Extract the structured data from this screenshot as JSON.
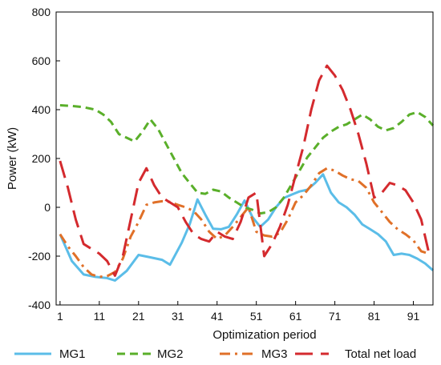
{
  "chart_data": {
    "type": "line",
    "title": "",
    "xlabel": "Optimization period",
    "ylabel": "Power (kW)",
    "xlim": [
      0,
      96
    ],
    "ylim": [
      -400,
      800
    ],
    "xticks": [
      1,
      11,
      21,
      31,
      41,
      51,
      61,
      71,
      81,
      91
    ],
    "yticks": [
      -400,
      -200,
      0,
      200,
      400,
      600,
      800
    ],
    "grid": false,
    "legend_position": "bottom",
    "series": [
      {
        "name": "MG1",
        "color": "#5bbde8",
        "style": "solid",
        "x": [
          1,
          4,
          7,
          10,
          13,
          15,
          18,
          21,
          24,
          27,
          29,
          32,
          34,
          36,
          38,
          40,
          42,
          44,
          46,
          48,
          50,
          52,
          54,
          56,
          58,
          60,
          62,
          64,
          66,
          68,
          70,
          72,
          74,
          76,
          78,
          80,
          82,
          84,
          86,
          88,
          90,
          92,
          94,
          96
        ],
        "values": [
          -110,
          -220,
          -275,
          -285,
          -290,
          -300,
          -260,
          -195,
          -205,
          -215,
          -235,
          -145,
          -70,
          32,
          -30,
          -88,
          -90,
          -80,
          -30,
          28,
          -40,
          -80,
          -50,
          0,
          38,
          52,
          65,
          72,
          100,
          135,
          60,
          20,
          0,
          -30,
          -70,
          -90,
          -110,
          -140,
          -195,
          -190,
          -195,
          -210,
          -230,
          -258
        ]
      },
      {
        "name": "MG2",
        "color": "#5aaf2a",
        "style": "short-dash",
        "x": [
          1,
          4,
          7,
          10,
          12,
          14,
          16,
          18,
          20,
          22,
          24,
          26,
          28,
          30,
          32,
          34,
          36,
          38,
          40,
          42,
          44,
          46,
          48,
          50,
          52,
          54,
          56,
          58,
          60,
          62,
          64,
          66,
          68,
          70,
          72,
          74,
          76,
          78,
          80,
          82,
          84,
          86,
          88,
          90,
          92,
          94,
          96
        ],
        "values": [
          418,
          415,
          410,
          400,
          380,
          350,
          300,
          285,
          270,
          310,
          360,
          320,
          260,
          200,
          140,
          100,
          60,
          55,
          72,
          65,
          40,
          20,
          0,
          -10,
          -25,
          -20,
          0,
          40,
          95,
          150,
          205,
          245,
          285,
          310,
          330,
          340,
          360,
          380,
          360,
          330,
          315,
          325,
          350,
          380,
          390,
          370,
          335
        ]
      },
      {
        "name": "MG3",
        "color": "#e07028",
        "style": "dash-dot",
        "x": [
          1,
          3,
          5,
          7,
          9,
          11,
          13,
          15,
          17,
          19,
          21,
          23,
          25,
          27,
          29,
          31,
          33,
          35,
          37,
          39,
          41,
          43,
          45,
          47,
          49,
          51,
          53,
          55,
          57,
          59,
          61,
          63,
          65,
          67,
          69,
          71,
          73,
          75,
          77,
          79,
          81,
          83,
          85,
          87,
          89,
          91,
          93,
          95
        ],
        "values": [
          -110,
          -160,
          -200,
          -245,
          -275,
          -285,
          -282,
          -265,
          -210,
          -120,
          -60,
          10,
          20,
          25,
          22,
          10,
          0,
          -15,
          -50,
          -100,
          -130,
          -115,
          -80,
          -40,
          0,
          -100,
          -115,
          -120,
          -105,
          -50,
          20,
          50,
          90,
          140,
          160,
          150,
          130,
          115,
          108,
          80,
          20,
          -20,
          -60,
          -90,
          -110,
          -135,
          -180,
          -190
        ]
      },
      {
        "name": "Total net load",
        "color": "#d42a2e",
        "style": "long-dash",
        "x": [
          1,
          3,
          5,
          7,
          9,
          11,
          13,
          15,
          17,
          19,
          21,
          23,
          25,
          27,
          29,
          31,
          33,
          35,
          37,
          39,
          41,
          43,
          45,
          47,
          49,
          51,
          53,
          55,
          57,
          59,
          61,
          63,
          65,
          67,
          69,
          71,
          73,
          75,
          77,
          79,
          81,
          83,
          85,
          87,
          89,
          91,
          93,
          95
        ],
        "values": [
          190,
          80,
          -50,
          -150,
          -170,
          -190,
          -220,
          -280,
          -200,
          -50,
          100,
          160,
          90,
          40,
          20,
          0,
          -60,
          -110,
          -130,
          -140,
          -100,
          -120,
          -130,
          -60,
          40,
          60,
          -200,
          -150,
          -80,
          10,
          130,
          250,
          400,
          520,
          580,
          540,
          480,
          400,
          300,
          180,
          40,
          60,
          100,
          90,
          70,
          20,
          -50,
          -190
        ]
      }
    ]
  }
}
